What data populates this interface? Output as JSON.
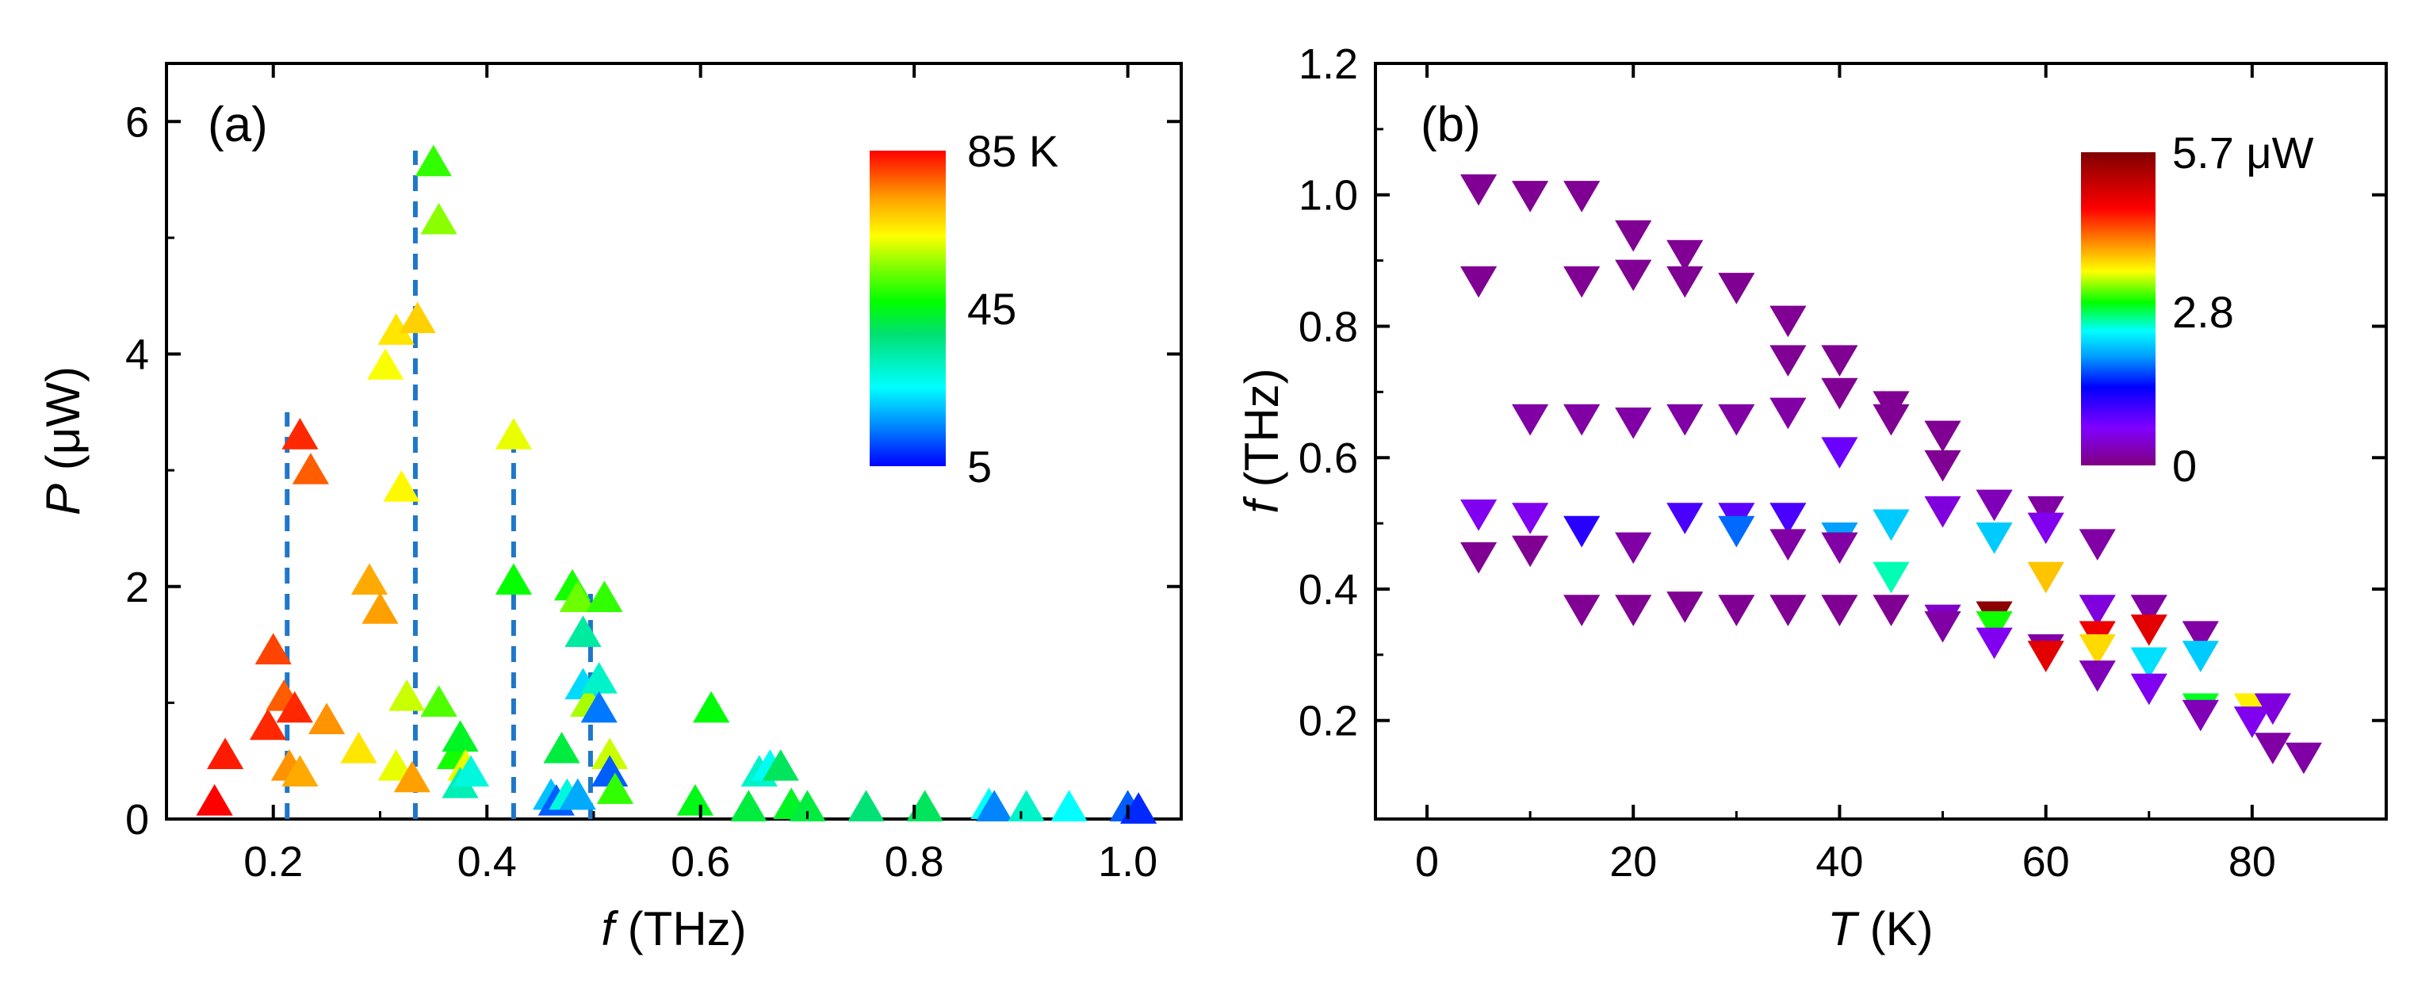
{
  "chart_data": [
    {
      "panel": "(a)",
      "type": "scatter",
      "marker": "triangle-up",
      "xlabel_italic": "f",
      "xlabel_rest": " (THz)",
      "ylabel_italic": "P",
      "ylabel_rest": " (μW)",
      "xlim": [
        0.1,
        1.05
      ],
      "ylim": [
        0,
        6.5
      ],
      "xticks": [
        {
          "value": 0.2,
          "label": "0.2"
        },
        {
          "value": 0.4,
          "label": "0.4"
        },
        {
          "value": 0.6,
          "label": "0.6"
        },
        {
          "value": 0.8,
          "label": "0.8"
        },
        {
          "value": 1.0,
          "label": "1.0"
        }
      ],
      "yticks": [
        {
          "value": 0,
          "label": "0"
        },
        {
          "value": 2,
          "label": "2"
        },
        {
          "value": 4,
          "label": "4"
        },
        {
          "value": 6,
          "label": "6"
        }
      ],
      "color_variable": "temperature (K)",
      "colorbar": {
        "min": 5,
        "max": 85,
        "ticks": [
          {
            "value": 85,
            "label": "85 K"
          },
          {
            "value": 45,
            "label": "45"
          },
          {
            "value": 5,
            "label": "5"
          }
        ],
        "colormap": "rainbow"
      },
      "dashed_lines": [
        {
          "x": 0.213,
          "y_top": 3.5,
          "color": "#1f77c9"
        },
        {
          "x": 0.333,
          "y_top": 5.75,
          "color": "#1f77c9"
        },
        {
          "x": 0.425,
          "y_top": 3.3,
          "color": "#1f77c9"
        },
        {
          "x": 0.497,
          "y_top": 2.0,
          "color": "#1f77c9"
        }
      ],
      "points": [
        {
          "f": 0.145,
          "P": 0.15,
          "T": 85
        },
        {
          "f": 0.155,
          "P": 0.55,
          "T": 83
        },
        {
          "f": 0.195,
          "P": 0.8,
          "T": 82
        },
        {
          "f": 0.2,
          "P": 1.45,
          "T": 80
        },
        {
          "f": 0.21,
          "P": 1.05,
          "T": 78
        },
        {
          "f": 0.215,
          "P": 0.45,
          "T": 74
        },
        {
          "f": 0.22,
          "P": 0.95,
          "T": 82
        },
        {
          "f": 0.225,
          "P": 3.3,
          "T": 82
        },
        {
          "f": 0.235,
          "P": 3.0,
          "T": 78
        },
        {
          "f": 0.225,
          "P": 0.4,
          "T": 72
        },
        {
          "f": 0.25,
          "P": 0.85,
          "T": 74
        },
        {
          "f": 0.28,
          "P": 0.6,
          "T": 66
        },
        {
          "f": 0.29,
          "P": 2.05,
          "T": 72
        },
        {
          "f": 0.3,
          "P": 1.8,
          "T": 73
        },
        {
          "f": 0.305,
          "P": 3.9,
          "T": 63
        },
        {
          "f": 0.315,
          "P": 4.2,
          "T": 66
        },
        {
          "f": 0.32,
          "P": 2.85,
          "T": 64
        },
        {
          "f": 0.335,
          "P": 4.3,
          "T": 68
        },
        {
          "f": 0.315,
          "P": 0.45,
          "T": 62
        },
        {
          "f": 0.325,
          "P": 1.05,
          "T": 60
        },
        {
          "f": 0.33,
          "P": 0.35,
          "T": 73
        },
        {
          "f": 0.35,
          "P": 5.65,
          "T": 50
        },
        {
          "f": 0.355,
          "P": 5.15,
          "T": 56
        },
        {
          "f": 0.355,
          "P": 1.0,
          "T": 52
        },
        {
          "f": 0.37,
          "P": 0.55,
          "T": 48
        },
        {
          "f": 0.375,
          "P": 0.7,
          "T": 44
        },
        {
          "f": 0.38,
          "P": 0.45,
          "T": 62
        },
        {
          "f": 0.375,
          "P": 0.3,
          "T": 32
        },
        {
          "f": 0.385,
          "P": 0.4,
          "T": 28
        },
        {
          "f": 0.425,
          "P": 3.3,
          "T": 62
        },
        {
          "f": 0.425,
          "P": 2.05,
          "T": 47
        },
        {
          "f": 0.46,
          "P": 0.2,
          "T": 20
        },
        {
          "f": 0.465,
          "P": 0.15,
          "T": 12
        },
        {
          "f": 0.47,
          "P": 0.6,
          "T": 42
        },
        {
          "f": 0.475,
          "P": 0.2,
          "T": 28
        },
        {
          "f": 0.48,
          "P": 2.0,
          "T": 48
        },
        {
          "f": 0.485,
          "P": 1.9,
          "T": 54
        },
        {
          "f": 0.49,
          "P": 1.6,
          "T": 34
        },
        {
          "f": 0.485,
          "P": 0.2,
          "T": 18
        },
        {
          "f": 0.49,
          "P": 1.15,
          "T": 22
        },
        {
          "f": 0.495,
          "P": 1.0,
          "T": 58
        },
        {
          "f": 0.505,
          "P": 1.2,
          "T": 30
        },
        {
          "f": 0.505,
          "P": 0.95,
          "T": 14
        },
        {
          "f": 0.51,
          "P": 1.9,
          "T": 50
        },
        {
          "f": 0.515,
          "P": 0.55,
          "T": 60
        },
        {
          "f": 0.515,
          "P": 0.4,
          "T": 12
        },
        {
          "f": 0.52,
          "P": 0.25,
          "T": 50
        },
        {
          "f": 0.595,
          "P": 0.15,
          "T": 45
        },
        {
          "f": 0.61,
          "P": 0.95,
          "T": 46
        },
        {
          "f": 0.645,
          "P": 0.1,
          "T": 42
        },
        {
          "f": 0.655,
          "P": 0.4,
          "T": 30
        },
        {
          "f": 0.665,
          "P": 0.45,
          "T": 26
        },
        {
          "f": 0.675,
          "P": 0.45,
          "T": 40
        },
        {
          "f": 0.685,
          "P": 0.12,
          "T": 44
        },
        {
          "f": 0.7,
          "P": 0.1,
          "T": 42
        },
        {
          "f": 0.755,
          "P": 0.1,
          "T": 38
        },
        {
          "f": 0.81,
          "P": 0.1,
          "T": 40
        },
        {
          "f": 0.87,
          "P": 0.12,
          "T": 25
        },
        {
          "f": 0.875,
          "P": 0.1,
          "T": 15
        },
        {
          "f": 0.905,
          "P": 0.1,
          "T": 30
        },
        {
          "f": 0.945,
          "P": 0.1,
          "T": 25
        },
        {
          "f": 1.0,
          "P": 0.1,
          "T": 12
        },
        {
          "f": 1.01,
          "P": 0.08,
          "T": 8
        }
      ]
    },
    {
      "panel": "(b)",
      "type": "scatter",
      "marker": "triangle-down",
      "xlabel_italic": "T",
      "xlabel_rest": " (K)",
      "ylabel_italic": "f",
      "ylabel_rest": " (THz)",
      "xlim": [
        -5,
        93
      ],
      "ylim": [
        0.05,
        1.2
      ],
      "xticks": [
        {
          "value": 0,
          "label": "0"
        },
        {
          "value": 20,
          "label": "20"
        },
        {
          "value": 40,
          "label": "40"
        },
        {
          "value": 60,
          "label": "60"
        },
        {
          "value": 80,
          "label": "80"
        }
      ],
      "yticks": [
        {
          "value": 0.2,
          "label": "0.2"
        },
        {
          "value": 0.4,
          "label": "0.4"
        },
        {
          "value": 0.6,
          "label": "0.6"
        },
        {
          "value": 0.8,
          "label": "0.8"
        },
        {
          "value": 1.0,
          "label": "1.0"
        },
        {
          "value": 1.2,
          "label": "1.2"
        }
      ],
      "color_variable": "power (μW)",
      "colorbar": {
        "min": 0,
        "max": 5.7,
        "ticks": [
          {
            "value": 5.7,
            "label": "5.7 μW"
          },
          {
            "value": 2.8,
            "label": "2.8"
          },
          {
            "value": 0,
            "label": "0"
          }
        ],
        "colormap": "rainbow-purple-to-darkred"
      },
      "points": [
        {
          "T": 5,
          "f": 1.01,
          "P": 0.1
        },
        {
          "T": 5,
          "f": 0.87,
          "P": 0.1
        },
        {
          "T": 5,
          "f": 0.515,
          "P": 0.6
        },
        {
          "T": 5,
          "f": 0.45,
          "P": 0.1
        },
        {
          "T": 10,
          "f": 1.0,
          "P": 0.1
        },
        {
          "T": 10,
          "f": 0.66,
          "P": 0.2
        },
        {
          "T": 10,
          "f": 0.51,
          "P": 0.6
        },
        {
          "T": 10,
          "f": 0.46,
          "P": 0.1
        },
        {
          "T": 15,
          "f": 1.0,
          "P": 0.1
        },
        {
          "T": 15,
          "f": 0.87,
          "P": 0.1
        },
        {
          "T": 15,
          "f": 0.66,
          "P": 0.2
        },
        {
          "T": 15,
          "f": 0.49,
          "P": 1.2
        },
        {
          "T": 15,
          "f": 0.37,
          "P": 0.1
        },
        {
          "T": 20,
          "f": 0.94,
          "P": 0.1
        },
        {
          "T": 20,
          "f": 0.88,
          "P": 0.1
        },
        {
          "T": 20,
          "f": 0.655,
          "P": 0.2
        },
        {
          "T": 20,
          "f": 0.465,
          "P": 0.2
        },
        {
          "T": 20,
          "f": 0.37,
          "P": 0.1
        },
        {
          "T": 25,
          "f": 0.91,
          "P": 0.1
        },
        {
          "T": 25,
          "f": 0.87,
          "P": 0.1
        },
        {
          "T": 25,
          "f": 0.66,
          "P": 0.2
        },
        {
          "T": 25,
          "f": 0.51,
          "P": 1.0
        },
        {
          "T": 25,
          "f": 0.375,
          "P": 0.1
        },
        {
          "T": 30,
          "f": 0.86,
          "P": 0.1
        },
        {
          "T": 30,
          "f": 0.66,
          "P": 0.2
        },
        {
          "T": 30,
          "f": 0.51,
          "P": 0.9
        },
        {
          "T": 30,
          "f": 0.49,
          "P": 1.8
        },
        {
          "T": 30,
          "f": 0.37,
          "P": 0.1
        },
        {
          "T": 35,
          "f": 0.81,
          "P": 0.1
        },
        {
          "T": 35,
          "f": 0.75,
          "P": 0.1
        },
        {
          "T": 35,
          "f": 0.67,
          "P": 0.2
        },
        {
          "T": 35,
          "f": 0.51,
          "P": 1.0
        },
        {
          "T": 35,
          "f": 0.47,
          "P": 0.2
        },
        {
          "T": 35,
          "f": 0.37,
          "P": 0.1
        },
        {
          "T": 40,
          "f": 0.75,
          "P": 0.1
        },
        {
          "T": 40,
          "f": 0.7,
          "P": 0.1
        },
        {
          "T": 40,
          "f": 0.61,
          "P": 0.8
        },
        {
          "T": 40,
          "f": 0.48,
          "P": 2.0
        },
        {
          "T": 40,
          "f": 0.465,
          "P": 0.2
        },
        {
          "T": 40,
          "f": 0.37,
          "P": 0.1
        },
        {
          "T": 45,
          "f": 0.68,
          "P": 0.1
        },
        {
          "T": 45,
          "f": 0.66,
          "P": 0.1
        },
        {
          "T": 45,
          "f": 0.5,
          "P": 2.2
        },
        {
          "T": 45,
          "f": 0.42,
          "P": 2.6
        },
        {
          "T": 45,
          "f": 0.37,
          "P": 0.1
        },
        {
          "T": 50,
          "f": 0.635,
          "P": 0.1
        },
        {
          "T": 50,
          "f": 0.59,
          "P": 0.1
        },
        {
          "T": 50,
          "f": 0.52,
          "P": 0.5
        },
        {
          "T": 50,
          "f": 0.355,
          "P": 0.4
        },
        {
          "T": 50,
          "f": 0.345,
          "P": 0.2
        },
        {
          "T": 55,
          "f": 0.53,
          "P": 0.3
        },
        {
          "T": 55,
          "f": 0.48,
          "P": 2.2
        },
        {
          "T": 55,
          "f": 0.36,
          "P": 5.6
        },
        {
          "T": 55,
          "f": 0.345,
          "P": 3.0
        },
        {
          "T": 55,
          "f": 0.32,
          "P": 0.6
        },
        {
          "T": 60,
          "f": 0.52,
          "P": 0.2
        },
        {
          "T": 60,
          "f": 0.495,
          "P": 0.6
        },
        {
          "T": 60,
          "f": 0.42,
          "P": 3.8
        },
        {
          "T": 60,
          "f": 0.31,
          "P": 0.2
        },
        {
          "T": 60,
          "f": 0.3,
          "P": 4.9
        },
        {
          "T": 65,
          "f": 0.47,
          "P": 0.2
        },
        {
          "T": 65,
          "f": 0.37,
          "P": 0.5
        },
        {
          "T": 65,
          "f": 0.33,
          "P": 4.8
        },
        {
          "T": 65,
          "f": 0.31,
          "P": 3.7
        },
        {
          "T": 65,
          "f": 0.27,
          "P": 0.3
        },
        {
          "T": 70,
          "f": 0.37,
          "P": 0.2
        },
        {
          "T": 70,
          "f": 0.34,
          "P": 4.9
        },
        {
          "T": 70,
          "f": 0.29,
          "P": 2.3
        },
        {
          "T": 70,
          "f": 0.25,
          "P": 0.6
        },
        {
          "T": 75,
          "f": 0.33,
          "P": 0.2
        },
        {
          "T": 75,
          "f": 0.3,
          "P": 2.2
        },
        {
          "T": 75,
          "f": 0.22,
          "P": 2.9
        },
        {
          "T": 75,
          "f": 0.21,
          "P": 0.3
        },
        {
          "T": 80,
          "f": 0.22,
          "P": 3.6
        },
        {
          "T": 80,
          "f": 0.2,
          "P": 0.6
        },
        {
          "T": 82,
          "f": 0.22,
          "P": 0.5
        },
        {
          "T": 82,
          "f": 0.16,
          "P": 0.2
        },
        {
          "T": 85,
          "f": 0.145,
          "P": 0.2
        }
      ]
    }
  ],
  "colors": {
    "dashed_line": "#1f77c9",
    "axis": "#000000",
    "background": "#ffffff"
  }
}
